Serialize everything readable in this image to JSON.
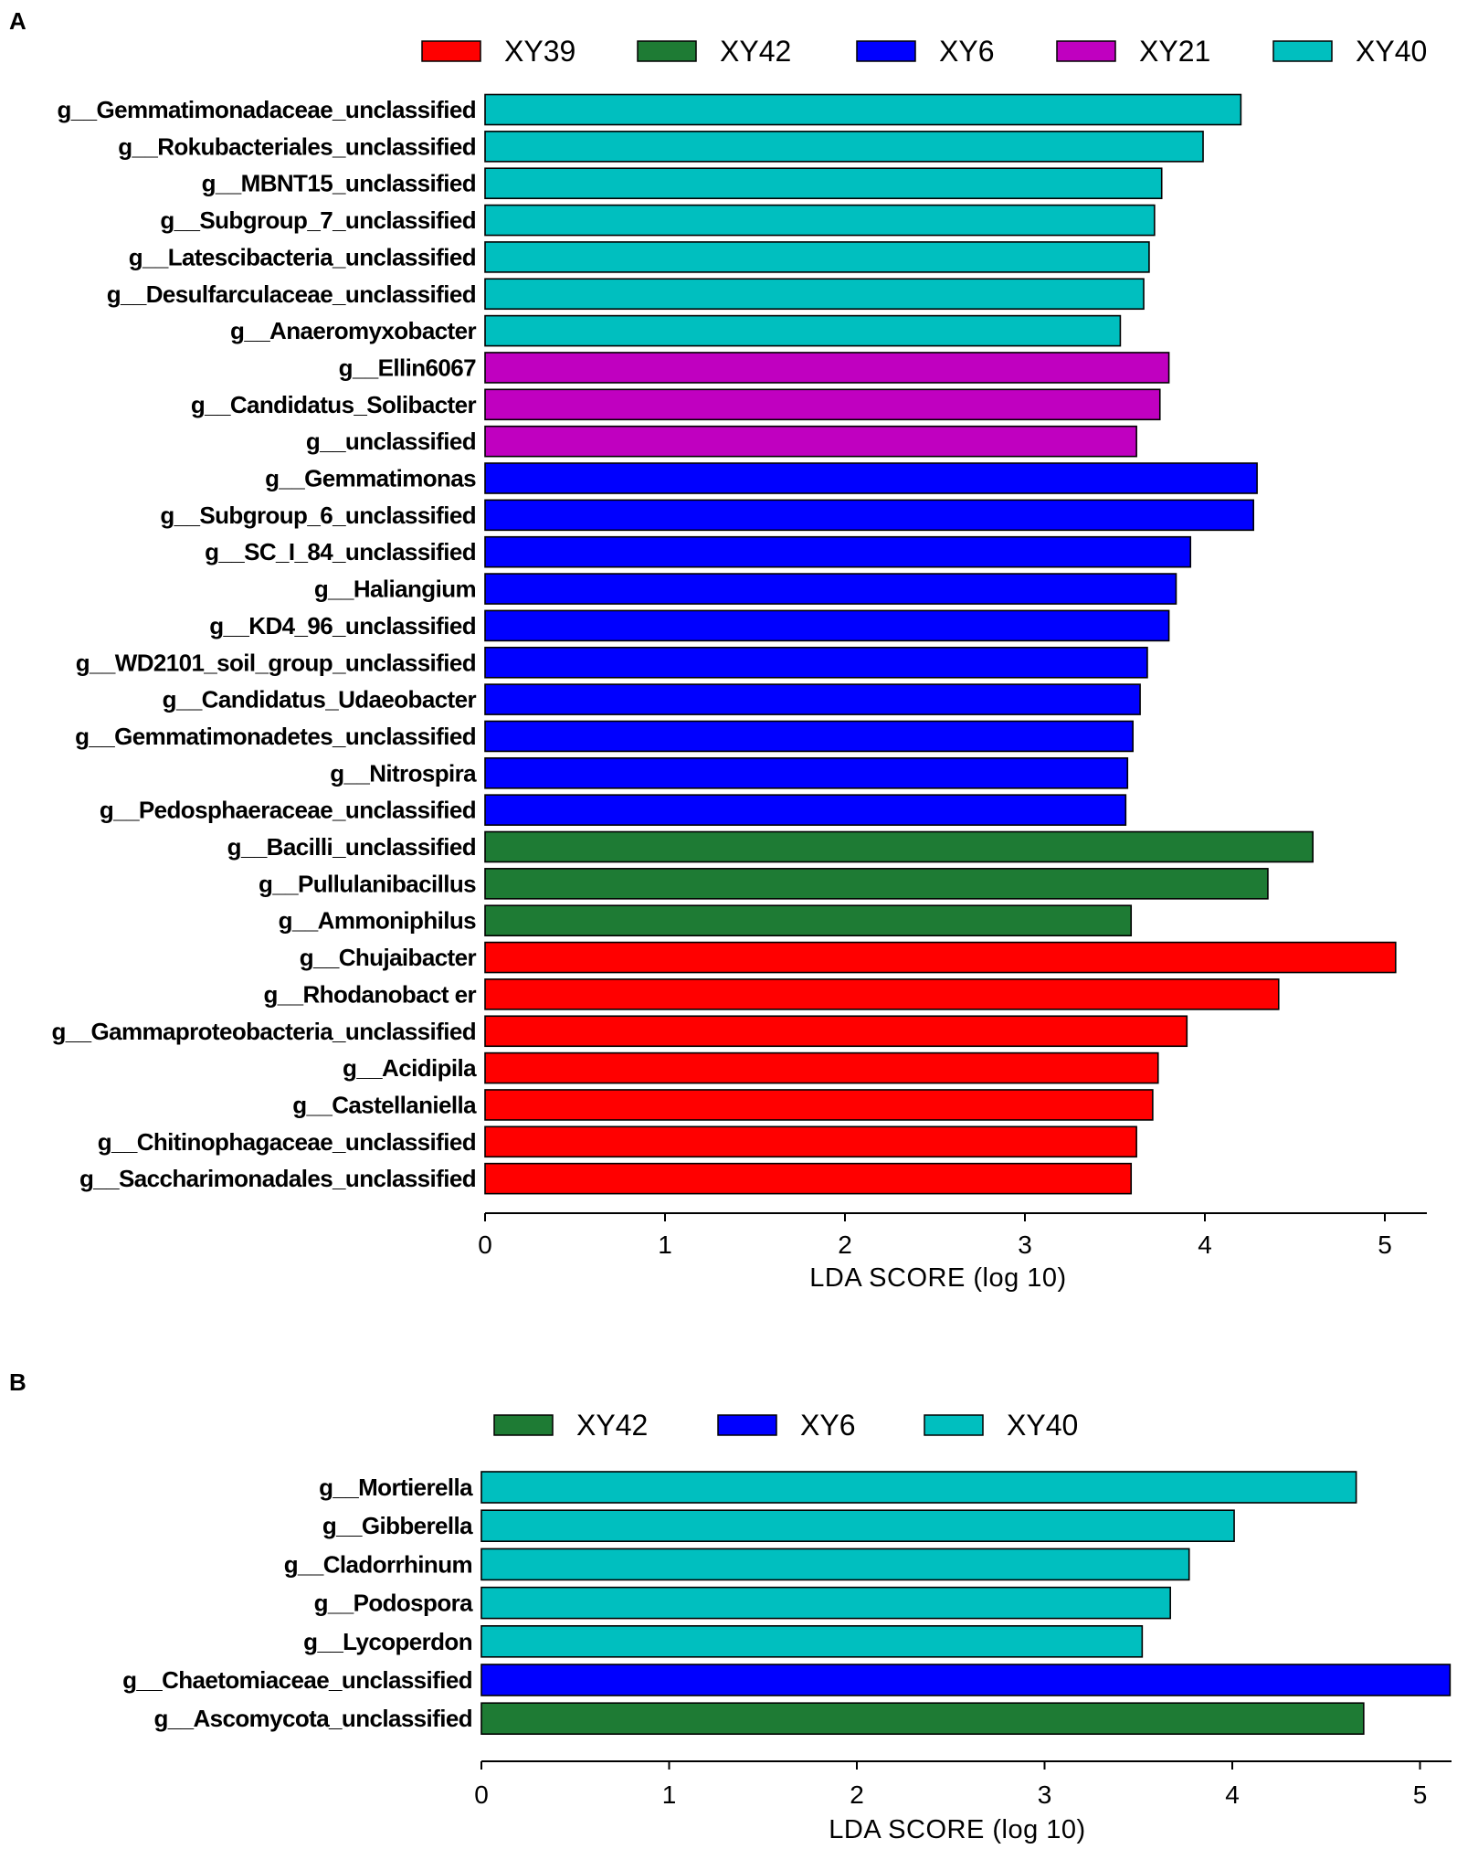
{
  "chart_data": [
    {
      "panel": "A",
      "type": "bar",
      "orientation": "horizontal",
      "title": "",
      "xlabel": "LDA SCORE (log 10)",
      "ylabel": "",
      "xlim": [
        0,
        5.2
      ],
      "xticks": [
        0,
        1,
        2,
        3,
        4,
        5
      ],
      "grid": false,
      "legend_position": "top",
      "legend": [
        {
          "name": "XY39",
          "color": "#ff0000"
        },
        {
          "name": "XY42",
          "color": "#1e7b34"
        },
        {
          "name": "XY6",
          "color": "#0000ff"
        },
        {
          "name": "XY21",
          "color": "#c000c0"
        },
        {
          "name": "XY40",
          "color": "#00bfbf"
        }
      ],
      "bars": [
        {
          "label": "g__Gemmatimonadaceae_unclassified",
          "value": 4.2,
          "group": "XY40"
        },
        {
          "label": "g__Rokubacteriales_unclassified",
          "value": 3.99,
          "group": "XY40"
        },
        {
          "label": "g__MBNT15_unclassified",
          "value": 3.76,
          "group": "XY40"
        },
        {
          "label": "g__Subgroup_7_unclassified",
          "value": 3.72,
          "group": "XY40"
        },
        {
          "label": "g__Latescibacteria_unclassified",
          "value": 3.69,
          "group": "XY40"
        },
        {
          "label": "g__Desulfarculaceae_unclassified",
          "value": 3.66,
          "group": "XY40"
        },
        {
          "label": "g__Anaeromyxobacter",
          "value": 3.53,
          "group": "XY40"
        },
        {
          "label": "g__Ellin6067",
          "value": 3.8,
          "group": "XY21"
        },
        {
          "label": "g__Candidatus_Solibacter",
          "value": 3.75,
          "group": "XY21"
        },
        {
          "label": "g__unclassified",
          "value": 3.62,
          "group": "XY21"
        },
        {
          "label": "g__Gemmatimonas",
          "value": 4.29,
          "group": "XY6"
        },
        {
          "label": "g__Subgroup_6_unclassified",
          "value": 4.27,
          "group": "XY6"
        },
        {
          "label": "g__SC_I_84_unclassified",
          "value": 3.92,
          "group": "XY6"
        },
        {
          "label": "g__Haliangium",
          "value": 3.84,
          "group": "XY6"
        },
        {
          "label": "g__KD4_96_unclassified",
          "value": 3.8,
          "group": "XY6"
        },
        {
          "label": "g__WD2101_soil_group_unclassified",
          "value": 3.68,
          "group": "XY6"
        },
        {
          "label": "g__Candidatus_Udaeobacter",
          "value": 3.64,
          "group": "XY6"
        },
        {
          "label": "g__Gemmatimonadetes_unclassified",
          "value": 3.6,
          "group": "XY6"
        },
        {
          "label": "g__Nitrospira",
          "value": 3.57,
          "group": "XY6"
        },
        {
          "label": "g__Pedosphaeraceae_unclassified",
          "value": 3.56,
          "group": "XY6"
        },
        {
          "label": "g__Bacilli_unclassified",
          "value": 4.6,
          "group": "XY42"
        },
        {
          "label": "g__Pullulanibacillus",
          "value": 4.35,
          "group": "XY42"
        },
        {
          "label": "g__Ammoniphilus",
          "value": 3.59,
          "group": "XY42"
        },
        {
          "label": "g__Chujaibacter",
          "value": 5.06,
          "group": "XY39"
        },
        {
          "label": "g__Rhodanobact er",
          "value": 4.41,
          "group": "XY39"
        },
        {
          "label": "g__Gammaproteobacteria_unclassified",
          "value": 3.9,
          "group": "XY39"
        },
        {
          "label": "g__Acidipila",
          "value": 3.74,
          "group": "XY39"
        },
        {
          "label": "g__Castellaniella",
          "value": 3.71,
          "group": "XY39"
        },
        {
          "label": "g__Chitinophagaceae_unclassified",
          "value": 3.62,
          "group": "XY39"
        },
        {
          "label": "g__Saccharimonadales_unclassified",
          "value": 3.59,
          "group": "XY39"
        }
      ]
    },
    {
      "panel": "B",
      "type": "bar",
      "orientation": "horizontal",
      "title": "",
      "xlabel": "LDA SCORE (log 10)",
      "ylabel": "",
      "xlim": [
        0,
        5.2
      ],
      "xticks": [
        0,
        1,
        2,
        3,
        4,
        5
      ],
      "grid": false,
      "legend_position": "top",
      "legend": [
        {
          "name": "XY42",
          "color": "#1e7b34"
        },
        {
          "name": "XY6",
          "color": "#0000ff"
        },
        {
          "name": "XY40",
          "color": "#00bfbf"
        }
      ],
      "bars": [
        {
          "label": "g__Mortierella",
          "value": 4.66,
          "group": "XY40"
        },
        {
          "label": "g__Gibberella",
          "value": 4.01,
          "group": "XY40"
        },
        {
          "label": "g__Cladorrhinum",
          "value": 3.77,
          "group": "XY40"
        },
        {
          "label": "g__Podospora",
          "value": 3.67,
          "group": "XY40"
        },
        {
          "label": "g__Lycoperdon",
          "value": 3.52,
          "group": "XY40"
        },
        {
          "label": "g__Chaetomiaceae_unclassified",
          "value": 5.16,
          "group": "XY6"
        },
        {
          "label": "g__Ascomycota_unclassified",
          "value": 4.7,
          "group": "XY42"
        }
      ]
    }
  ]
}
